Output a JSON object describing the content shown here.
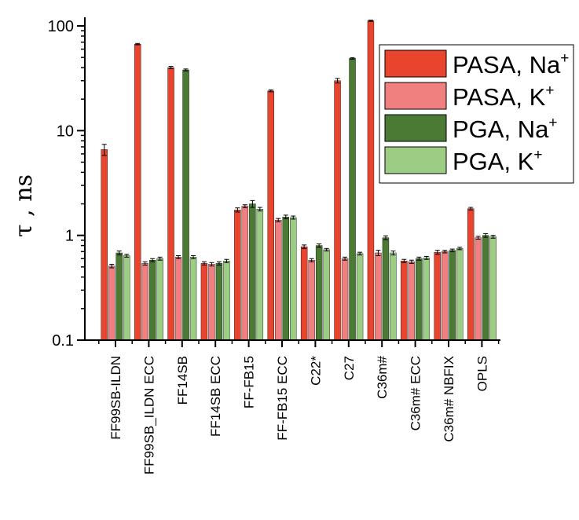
{
  "chart_data": {
    "type": "bar",
    "ylabel": "τ , ns",
    "yscale": "log",
    "ylim": [
      0.1,
      100
    ],
    "yticks": [
      {
        "value": 0.1,
        "label": "0.1"
      },
      {
        "value": 1,
        "label": "1"
      },
      {
        "value": 10,
        "label": "10"
      },
      {
        "value": 100,
        "label": "100"
      }
    ],
    "legend_position": "top-right",
    "categories": [
      "FF99SB-ILDN",
      "FF99SB_ILDN ECC",
      "FF14SB",
      "FF14SB ECC",
      "FF-FB15",
      "FF-FB15 ECC",
      "C22*",
      "C27",
      "C36m#",
      "C36m# ECC",
      "C36m# NBFIX",
      "OPLS"
    ],
    "series": [
      {
        "name": "PASA, Na",
        "superscript": "+",
        "color": "#e8442e",
        "values": [
          6.6,
          67,
          40,
          0.54,
          1.75,
          24,
          0.78,
          30,
          112,
          0.57,
          0.69,
          1.8
        ],
        "errors": [
          0.8,
          1.0,
          1.0,
          0.02,
          0.08,
          0.5,
          0.03,
          1.5,
          1.5,
          0.02,
          0.03,
          0.05
        ]
      },
      {
        "name": "PASA, K",
        "superscript": "+",
        "color": "#f08080",
        "values": [
          0.51,
          0.54,
          0.62,
          0.53,
          1.9,
          1.4,
          0.58,
          0.6,
          0.68,
          0.56,
          0.7,
          0.95
        ],
        "errors": [
          0.02,
          0.02,
          0.02,
          0.02,
          0.06,
          0.05,
          0.02,
          0.02,
          0.04,
          0.02,
          0.02,
          0.03
        ]
      },
      {
        "name": "PGA, Na",
        "superscript": "+",
        "color": "#4a7a34",
        "values": [
          0.68,
          0.58,
          38,
          0.54,
          2.0,
          1.5,
          0.8,
          49,
          0.95,
          0.6,
          0.72,
          1.0
        ],
        "errors": [
          0.03,
          0.02,
          0.8,
          0.02,
          0.15,
          0.06,
          0.03,
          0.8,
          0.04,
          0.02,
          0.02,
          0.04
        ]
      },
      {
        "name": "PGA, K",
        "superscript": "+",
        "color": "#9dcc84",
        "values": [
          0.64,
          0.6,
          0.62,
          0.57,
          1.78,
          1.48,
          0.73,
          0.67,
          0.68,
          0.61,
          0.75,
          0.97
        ],
        "errors": [
          0.02,
          0.02,
          0.02,
          0.02,
          0.07,
          0.05,
          0.02,
          0.02,
          0.03,
          0.02,
          0.02,
          0.03
        ]
      }
    ]
  }
}
